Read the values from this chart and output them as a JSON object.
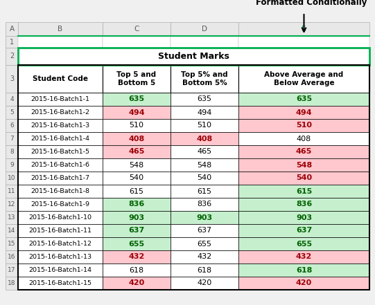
{
  "title_annotation": "Formatted Conditionally",
  "merge_title": "Student Marks",
  "col_headers": [
    "Student Code",
    "Top 5 and\nBottom 5",
    "Top 5% and\nBottom 5%",
    "Above Average and\nBelow Average"
  ],
  "students": [
    "2015-16-Batch1-1",
    "2015-16-Batch1-2",
    "2015-16-Batch1-3",
    "2015-16-Batch1-4",
    "2015-16-Batch1-5",
    "2015-16-Batch1-6",
    "2015-16-Batch1-7",
    "2015-16-Batch1-8",
    "2015-16-Batch1-9",
    "2015-16-Batch1-10",
    "2015-16-Batch1-11",
    "2015-16-Batch1-12",
    "2015-16-Batch1-13",
    "2015-16-Batch1-14",
    "2015-16-Batch1-15"
  ],
  "values": [
    635,
    494,
    510,
    408,
    465,
    548,
    540,
    615,
    836,
    903,
    637,
    655,
    432,
    618,
    420
  ],
  "col_B_bg": [
    "#c6efce",
    "#ffc7ce",
    "#ffffff",
    "#ffc7ce",
    "#ffc7ce",
    "#ffffff",
    "#ffffff",
    "#ffffff",
    "#c6efce",
    "#c6efce",
    "#c6efce",
    "#c6efce",
    "#ffc7ce",
    "#ffffff",
    "#ffc7ce"
  ],
  "col_B_fg": [
    "#006100",
    "#9c0006",
    "#000000",
    "#9c0006",
    "#9c0006",
    "#000000",
    "#000000",
    "#000000",
    "#006100",
    "#006100",
    "#006100",
    "#006100",
    "#9c0006",
    "#000000",
    "#9c0006"
  ],
  "col_C_bg": [
    "#ffffff",
    "#ffffff",
    "#ffffff",
    "#ffc7ce",
    "#ffffff",
    "#ffffff",
    "#ffffff",
    "#ffffff",
    "#ffffff",
    "#c6efce",
    "#ffffff",
    "#ffffff",
    "#ffffff",
    "#ffffff",
    "#ffffff"
  ],
  "col_C_fg": [
    "#000000",
    "#000000",
    "#000000",
    "#9c0006",
    "#000000",
    "#000000",
    "#000000",
    "#000000",
    "#000000",
    "#006100",
    "#000000",
    "#000000",
    "#000000",
    "#000000",
    "#000000"
  ],
  "col_E_bg": [
    "#c6efce",
    "#ffc7ce",
    "#ffc7ce",
    "#ffffff",
    "#ffc7ce",
    "#ffc7ce",
    "#ffc7ce",
    "#c6efce",
    "#c6efce",
    "#c6efce",
    "#c6efce",
    "#c6efce",
    "#ffc7ce",
    "#c6efce",
    "#ffc7ce"
  ],
  "col_E_fg": [
    "#006100",
    "#9c0006",
    "#9c0006",
    "#000000",
    "#9c0006",
    "#9c0006",
    "#9c0006",
    "#006100",
    "#006100",
    "#006100",
    "#006100",
    "#006100",
    "#9c0006",
    "#006100",
    "#9c0006"
  ],
  "fig_bg": "#f0f0f0",
  "cell_bg_white": "#ffffff",
  "row_header_bg": "#e8e8e8",
  "border_dark": "#000000",
  "border_light": "#b0b0b0",
  "green_border": "#00b050",
  "text_gray": "#595959"
}
